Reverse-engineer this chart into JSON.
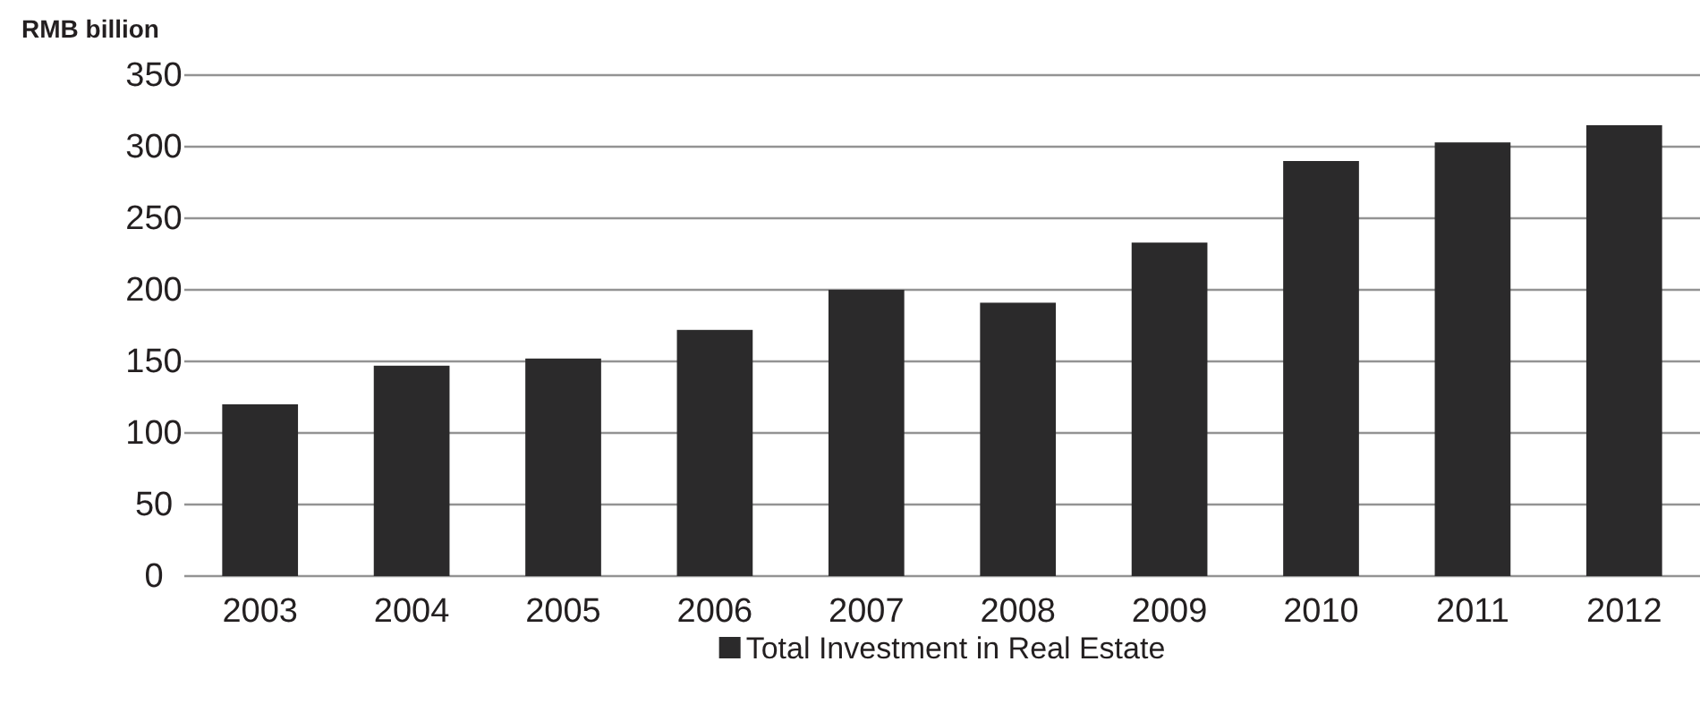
{
  "chart_data": {
    "type": "bar",
    "ylabel": "RMB billion",
    "categories": [
      "2003",
      "2004",
      "2005",
      "2006",
      "2007",
      "2008",
      "2009",
      "2010",
      "2011",
      "2012"
    ],
    "series": [
      {
        "name": "Total Investment in Real Estate",
        "color": "#2b2a2b",
        "values": [
          120,
          147,
          152,
          172,
          200,
          191,
          233,
          290,
          303,
          315
        ]
      }
    ],
    "ylim": [
      0,
      350
    ],
    "yticks": [
      0,
      50,
      100,
      150,
      200,
      250,
      300,
      350
    ],
    "grid": "y",
    "legend": "bottom"
  }
}
